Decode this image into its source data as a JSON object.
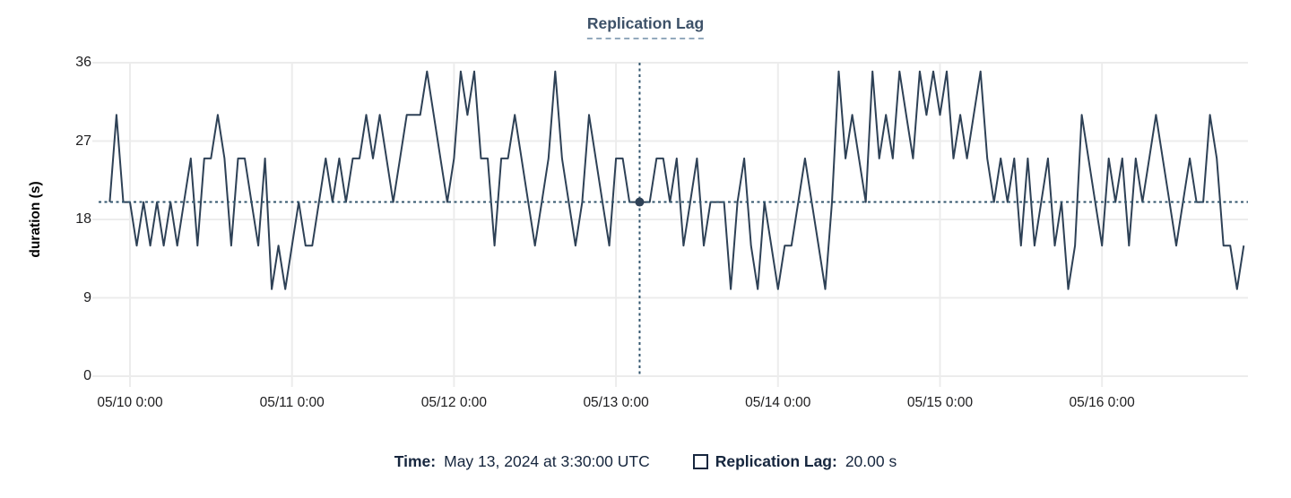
{
  "title": "Replication Lag",
  "colors": {
    "series_line": "#2e4156",
    "crosshair": "#33566e",
    "gridline": "#ececec",
    "title_text": "#3d5168",
    "title_underline": "#93a9bd",
    "tick_text": "#1d1d1f",
    "footer_text": "#16263e",
    "background": "#ffffff"
  },
  "chart_data": {
    "type": "line",
    "title": "Replication Lag",
    "series_name": "Replication Lag",
    "xlabel": "",
    "ylabel": "duration (s)",
    "ylim": [
      0,
      36
    ],
    "y_ticks": [
      0,
      9,
      18,
      27,
      36
    ],
    "x_tick_labels": [
      "05/10 0:00",
      "05/11 0:00",
      "05/12 0:00",
      "05/13 0:00",
      "05/14 0:00",
      "05/15 0:00",
      "05/16 0:00"
    ],
    "x_tick_hours_from_start": [
      3,
      27,
      51,
      75,
      99,
      123,
      147
    ],
    "x_start": "2024-05-09 21:00 UTC",
    "x_step_hours": 1,
    "grid": true,
    "legend_position": "bottom",
    "values": [
      20,
      30,
      20,
      20,
      15,
      20,
      15,
      20,
      15,
      20,
      15,
      20,
      25,
      15,
      25,
      25,
      30,
      25,
      15,
      25,
      25,
      20,
      15,
      25,
      10,
      15,
      10,
      15,
      20,
      15,
      15,
      20,
      25,
      20,
      25,
      20,
      25,
      25,
      30,
      25,
      30,
      25,
      20,
      25,
      30,
      30,
      30,
      35,
      30,
      25,
      20,
      25,
      35,
      30,
      35,
      25,
      25,
      15,
      25,
      25,
      30,
      25,
      20,
      15,
      20,
      25,
      35,
      25,
      20,
      15,
      20,
      30,
      25,
      20,
      15,
      25,
      25,
      20,
      20,
      20,
      20,
      25,
      25,
      20,
      25,
      15,
      20,
      25,
      15,
      20,
      20,
      20,
      10,
      20,
      25,
      15,
      10,
      20,
      15,
      10,
      15,
      15,
      20,
      25,
      20,
      15,
      10,
      20,
      35,
      25,
      30,
      25,
      20,
      35,
      25,
      30,
      25,
      35,
      30,
      25,
      35,
      30,
      35,
      30,
      35,
      25,
      30,
      25,
      30,
      35,
      25,
      20,
      25,
      20,
      25,
      15,
      25,
      15,
      20,
      25,
      15,
      20,
      10,
      15,
      30,
      25,
      20,
      15,
      25,
      20,
      25,
      15,
      25,
      20,
      25,
      30,
      25,
      20,
      15,
      20,
      25,
      20,
      20,
      30,
      25,
      15,
      15,
      10,
      15
    ]
  },
  "crosshair": {
    "hours_from_start": 78.5,
    "time": "May 13, 2024 at 3:30:00 UTC",
    "value": 20,
    "value_display": "20.00 s"
  },
  "footer": {
    "time_label": "Time:",
    "time_value": "May 13, 2024 at 3:30:00 UTC",
    "series_label": "Replication Lag:",
    "series_value": "20.00 s"
  }
}
